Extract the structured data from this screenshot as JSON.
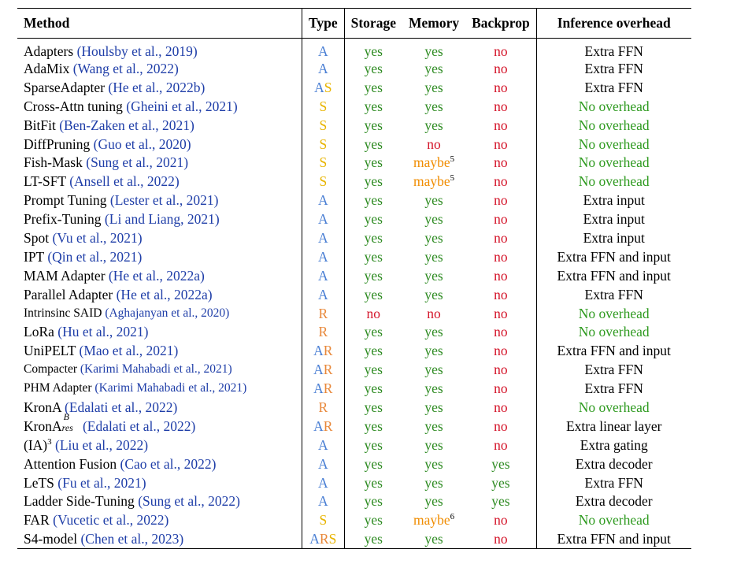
{
  "headers": {
    "method": "Method",
    "type": "Type",
    "storage": "Storage",
    "memory": "Memory",
    "backprop": "Backprop",
    "inference": "Inference overhead"
  },
  "colors": {
    "citation": "#1f3ea8",
    "type_A": "#4a7fd4",
    "type_S": "#e8b400",
    "type_R": "#e8883a",
    "yes": "#2e8b22",
    "no": "#d4152a",
    "maybe": "#f08c00",
    "no_overhead": "#2e9a1f"
  },
  "rows": [
    {
      "name": "Adapters",
      "cite": "(Houlsby et al., 2019)",
      "type": "A",
      "storage": "yes",
      "memory": "yes",
      "backprop": "no",
      "overhead": "Extra FFN"
    },
    {
      "name": "AdaMix",
      "cite": "(Wang et al., 2022)",
      "type": "A",
      "storage": "yes",
      "memory": "yes",
      "backprop": "no",
      "overhead": "Extra FFN"
    },
    {
      "name": "SparseAdapter",
      "cite": "(He et al., 2022b)",
      "type": "AS",
      "storage": "yes",
      "memory": "yes",
      "backprop": "no",
      "overhead": "Extra FFN"
    },
    {
      "name": "Cross-Attn tuning",
      "cite": "(Gheini et al., 2021)",
      "type": "S",
      "storage": "yes",
      "memory": "yes",
      "backprop": "no",
      "overhead": "No overhead"
    },
    {
      "name": "BitFit",
      "cite": "(Ben-Zaken et al., 2021)",
      "type": "S",
      "storage": "yes",
      "memory": "yes",
      "backprop": "no",
      "overhead": "No overhead"
    },
    {
      "name": "DiffPruning",
      "cite": "(Guo et al., 2020)",
      "type": "S",
      "storage": "yes",
      "memory": "no",
      "backprop": "no",
      "overhead": "No overhead"
    },
    {
      "name": "Fish-Mask",
      "cite": "(Sung et al., 2021)",
      "type": "S",
      "storage": "yes",
      "memory": "maybe",
      "memory_note": "5",
      "backprop": "no",
      "overhead": "No overhead"
    },
    {
      "name": "LT-SFT",
      "cite": "(Ansell et al., 2022)",
      "type": "S",
      "storage": "yes",
      "memory": "maybe",
      "memory_note": "5",
      "backprop": "no",
      "overhead": "No overhead"
    },
    {
      "name": "Prompt Tuning",
      "cite": "(Lester et al., 2021)",
      "type": "A",
      "storage": "yes",
      "memory": "yes",
      "backprop": "no",
      "overhead": "Extra input"
    },
    {
      "name": "Prefix-Tuning",
      "cite": "(Li and Liang, 2021)",
      "type": "A",
      "storage": "yes",
      "memory": "yes",
      "backprop": "no",
      "overhead": "Extra input"
    },
    {
      "name": "Spot",
      "cite": "(Vu et al., 2021)",
      "type": "A",
      "storage": "yes",
      "memory": "yes",
      "backprop": "no",
      "overhead": "Extra input"
    },
    {
      "name": "IPT",
      "cite": "(Qin et al., 2021)",
      "type": "A",
      "storage": "yes",
      "memory": "yes",
      "backprop": "no",
      "overhead": "Extra FFN and input"
    },
    {
      "name": "MAM Adapter",
      "cite": "(He et al., 2022a)",
      "type": "A",
      "storage": "yes",
      "memory": "yes",
      "backprop": "no",
      "overhead": "Extra FFN and input"
    },
    {
      "name": "Parallel Adapter",
      "cite": "(He et al., 2022a)",
      "type": "A",
      "storage": "yes",
      "memory": "yes",
      "backprop": "no",
      "overhead": "Extra FFN"
    },
    {
      "name": "Intrinsinc SAID",
      "cite": "(Aghajanyan et al., 2020)",
      "small": true,
      "type": "R",
      "storage": "no",
      "memory": "no",
      "backprop": "no",
      "overhead": "No overhead"
    },
    {
      "name": "LoRa",
      "cite": "(Hu et al., 2021)",
      "type": "R",
      "storage": "yes",
      "memory": "yes",
      "backprop": "no",
      "overhead": "No overhead"
    },
    {
      "name": "UniPELT",
      "cite": "(Mao et al., 2021)",
      "type": "AR",
      "storage": "yes",
      "memory": "yes",
      "backprop": "no",
      "overhead": "Extra FFN and input"
    },
    {
      "name": "Compacter",
      "cite": "(Karimi Mahabadi et al., 2021)",
      "small": true,
      "type": "AR",
      "storage": "yes",
      "memory": "yes",
      "backprop": "no",
      "overhead": "Extra FFN"
    },
    {
      "name": "PHM Adapter",
      "cite": "(Karimi Mahabadi et al., 2021)",
      "small": true,
      "type": "AR",
      "storage": "yes",
      "memory": "yes",
      "backprop": "no",
      "overhead": "Extra FFN"
    },
    {
      "name": "KronA",
      "cite": "(Edalati et al., 2022)",
      "type": "R",
      "storage": "yes",
      "memory": "yes",
      "backprop": "no",
      "overhead": "No overhead"
    },
    {
      "name": "KronA",
      "name_sup": "B",
      "name_sub": "res",
      "cite": "(Edalati et al., 2022)",
      "type": "AR",
      "storage": "yes",
      "memory": "yes",
      "backprop": "no",
      "overhead": "Extra linear layer"
    },
    {
      "name": "(IA)",
      "name_power": "3",
      "cite": "(Liu et al., 2022)",
      "type": "A",
      "storage": "yes",
      "memory": "yes",
      "backprop": "no",
      "overhead": "Extra gating"
    },
    {
      "name": "Attention Fusion",
      "cite": "(Cao et al., 2022)",
      "type": "A",
      "storage": "yes",
      "memory": "yes",
      "backprop": "yes",
      "overhead": "Extra decoder"
    },
    {
      "name": "LeTS",
      "cite": "(Fu et al., 2021)",
      "type": "A",
      "storage": "yes",
      "memory": "yes",
      "backprop": "yes",
      "overhead": "Extra FFN"
    },
    {
      "name": "Ladder Side-Tuning",
      "cite": "(Sung et al., 2022)",
      "type": "A",
      "storage": "yes",
      "memory": "yes",
      "backprop": "yes",
      "overhead": "Extra decoder"
    },
    {
      "name": "FAR",
      "cite": "(Vucetic et al., 2022)",
      "type": "S",
      "storage": "yes",
      "memory": "maybe",
      "memory_note": "6",
      "backprop": "no",
      "overhead": "No overhead"
    },
    {
      "name": "S4-model",
      "cite": "(Chen et al., 2023)",
      "type": "ARS",
      "storage": "yes",
      "memory": "yes",
      "backprop": "no",
      "overhead": "Extra FFN and input"
    }
  ]
}
